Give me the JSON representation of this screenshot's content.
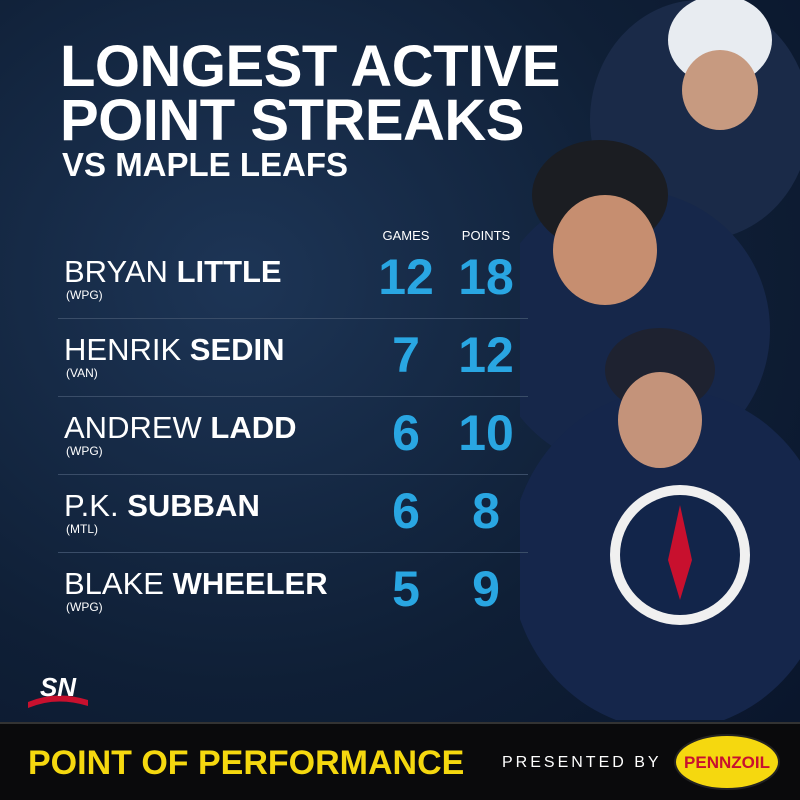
{
  "header": {
    "title": [
      "LONGEST ACTIVE",
      "POINT STREAKS"
    ],
    "subtitle": "VS MAPLE LEAFS"
  },
  "table": {
    "columns": [
      "GAMES",
      "POINTS"
    ],
    "rows": [
      {
        "first": "BRYAN",
        "last": "LITTLE",
        "team": "(WPG)",
        "games": 12,
        "points": 18
      },
      {
        "first": "HENRIK",
        "last": "SEDIN",
        "team": "(VAN)",
        "games": 7,
        "points": 12
      },
      {
        "first": "ANDREW",
        "last": "LADD",
        "team": "(WPG)",
        "games": 6,
        "points": 10
      },
      {
        "first": "P.K.",
        "last": "SUBBAN",
        "team": "(MTL)",
        "games": 6,
        "points": 8
      },
      {
        "first": "BLAKE",
        "last": "WHEELER",
        "team": "(WPG)",
        "games": 5,
        "points": 9
      }
    ]
  },
  "footer": {
    "logo": "SN",
    "banner": "POINT OF PERFORMANCE",
    "presented": "PRESENTED BY",
    "sponsor": "PENNZOIL"
  }
}
